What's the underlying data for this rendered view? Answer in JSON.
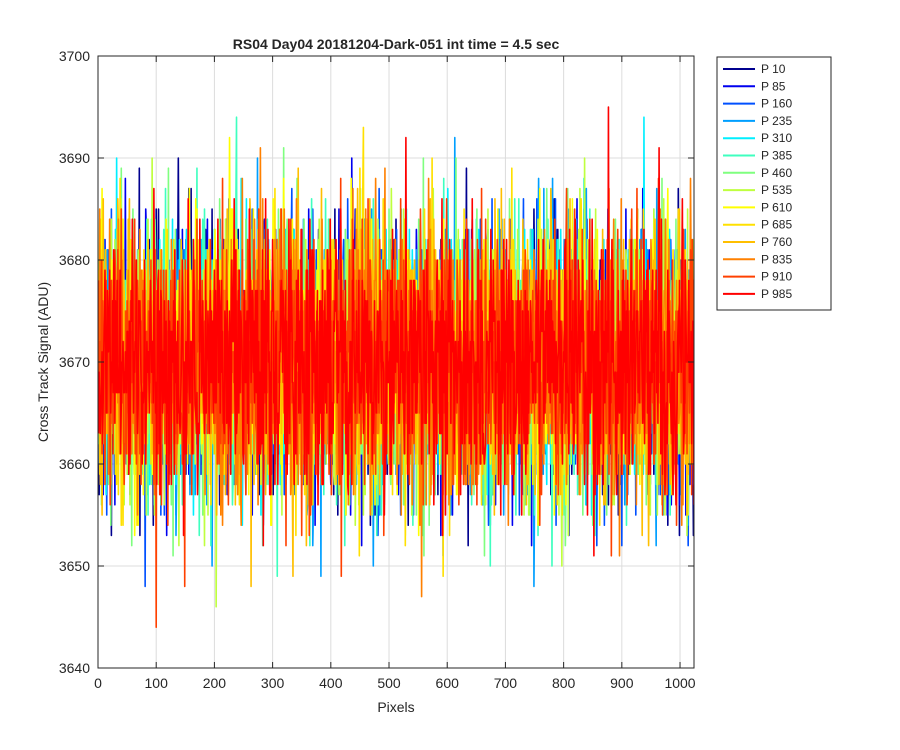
{
  "chart_data": {
    "type": "line",
    "title": "RS04 Day04 20181204-Dark-051 int time = 4.5 sec",
    "xlabel": "Pixels",
    "ylabel": "Cross Track Signal (ADU)",
    "xlim": [
      0,
      1024
    ],
    "ylim": [
      3640,
      3700
    ],
    "xticks": [
      0,
      100,
      200,
      300,
      400,
      500,
      600,
      700,
      800,
      900,
      1000
    ],
    "yticks": [
      3640,
      3650,
      3660,
      3670,
      3680,
      3690,
      3700
    ],
    "grid": true,
    "legend_position": "outside-top-right",
    "num_points": 1024,
    "signal_mean": 3670,
    "noise_std": 6.5,
    "series": [
      {
        "name": "P 10",
        "color": "#00008f"
      },
      {
        "name": "P 85",
        "color": "#0000ef"
      },
      {
        "name": "P 160",
        "color": "#0050ff"
      },
      {
        "name": "P 235",
        "color": "#009fff"
      },
      {
        "name": "P 310",
        "color": "#00efff"
      },
      {
        "name": "P 385",
        "color": "#3fffbf"
      },
      {
        "name": "P 460",
        "color": "#7fff7f"
      },
      {
        "name": "P 535",
        "color": "#bfff3f"
      },
      {
        "name": "P 610",
        "color": "#ffff00"
      },
      {
        "name": "P 685",
        "color": "#ffe000"
      },
      {
        "name": "P 760",
        "color": "#ffbf00"
      },
      {
        "name": "P 835",
        "color": "#ff8000"
      },
      {
        "name": "P 910",
        "color": "#ff4000"
      },
      {
        "name": "P 985",
        "color": "#ff0000"
      }
    ]
  }
}
